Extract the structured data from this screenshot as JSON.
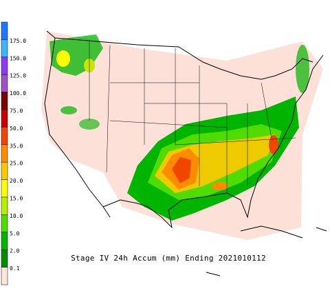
{
  "title": "Stage IV 24h Accum (mm) Ending 2021010112",
  "legend": {
    "labels": [
      "175.0",
      "150.0",
      "125.0",
      "100.0",
      "75.0",
      "50.0",
      "35.0",
      "25.0",
      "20.0",
      "15.0",
      "10.0",
      "5.0",
      "2.0",
      "0.1"
    ],
    "colors": [
      "#1e78ff",
      "#3cb4ff",
      "#8c3cf0",
      "#a050c8",
      "#780000",
      "#c80000",
      "#f04600",
      "#ff8c00",
      "#ffc800",
      "#ffff00",
      "#b4f000",
      "#50dc00",
      "#00b400",
      "#008c00",
      "#fde4dc"
    ]
  }
}
